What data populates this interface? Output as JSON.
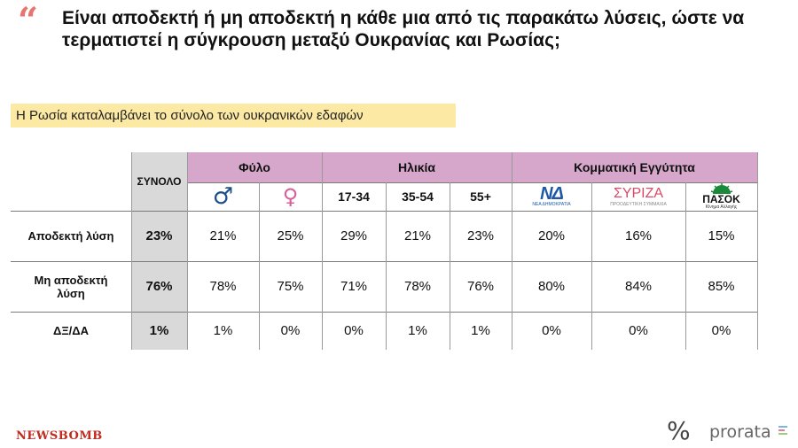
{
  "header": {
    "quote_mark": "“",
    "question": "Είναι αποδεκτή ή μη αποδεκτή η κάθε μια από τις παρακάτω λύσεις, ώστε να τερματιστεί η σύγκρουση μεταξύ Ουκρανίας και Ρωσίας;"
  },
  "subtitle": "Η Ρωσία καταλαμβάνει το σύνολο των ουκρανικών εδαφών",
  "table": {
    "total_header": "ΣΥΝΟΛΟ",
    "groups": [
      "Φύλο",
      "Ηλικία",
      "Κομματική Εγγύτητα"
    ],
    "gender": {
      "male_icon": "♂",
      "female_icon": "♀"
    },
    "ages": [
      "17-34",
      "35-54",
      "55+"
    ],
    "parties": {
      "nd": {
        "mark": "ΝΔ",
        "text": "ΝΕΑ ΔΗΜΟΚΡΑΤΙΑ"
      },
      "syriza": {
        "mark": "ΣΥΡΙΖΑ",
        "text": "ΠΡΟΟΔΕΥΤΙΚΗ ΣΥΜΜΑΧΙΑ"
      },
      "pasok": {
        "mark": "ΠΑΣΟΚ",
        "text": "Κίνημα Αλλαγής"
      }
    },
    "rows": [
      {
        "label": "Αποδεκτή λύση",
        "total": "23%",
        "values": [
          "21%",
          "25%",
          "29%",
          "21%",
          "23%",
          "20%",
          "16%",
          "15%"
        ]
      },
      {
        "label": "Μη αποδεκτή λύση",
        "total": "76%",
        "values": [
          "78%",
          "75%",
          "71%",
          "78%",
          "76%",
          "80%",
          "84%",
          "85%"
        ]
      },
      {
        "label": "ΔΞ/ΔΑ",
        "total": "1%",
        "values": [
          "1%",
          "0%",
          "0%",
          "1%",
          "1%",
          "0%",
          "0%",
          "0%"
        ]
      }
    ]
  },
  "footer": {
    "newsbomb": "NEWSBOMB",
    "percent_icon": "%",
    "prorata": "prorata",
    "colors": {
      "accent_pink": "#d6a7cb",
      "quote_red": "#e8736f",
      "highlight": "#fbe9a4"
    }
  }
}
